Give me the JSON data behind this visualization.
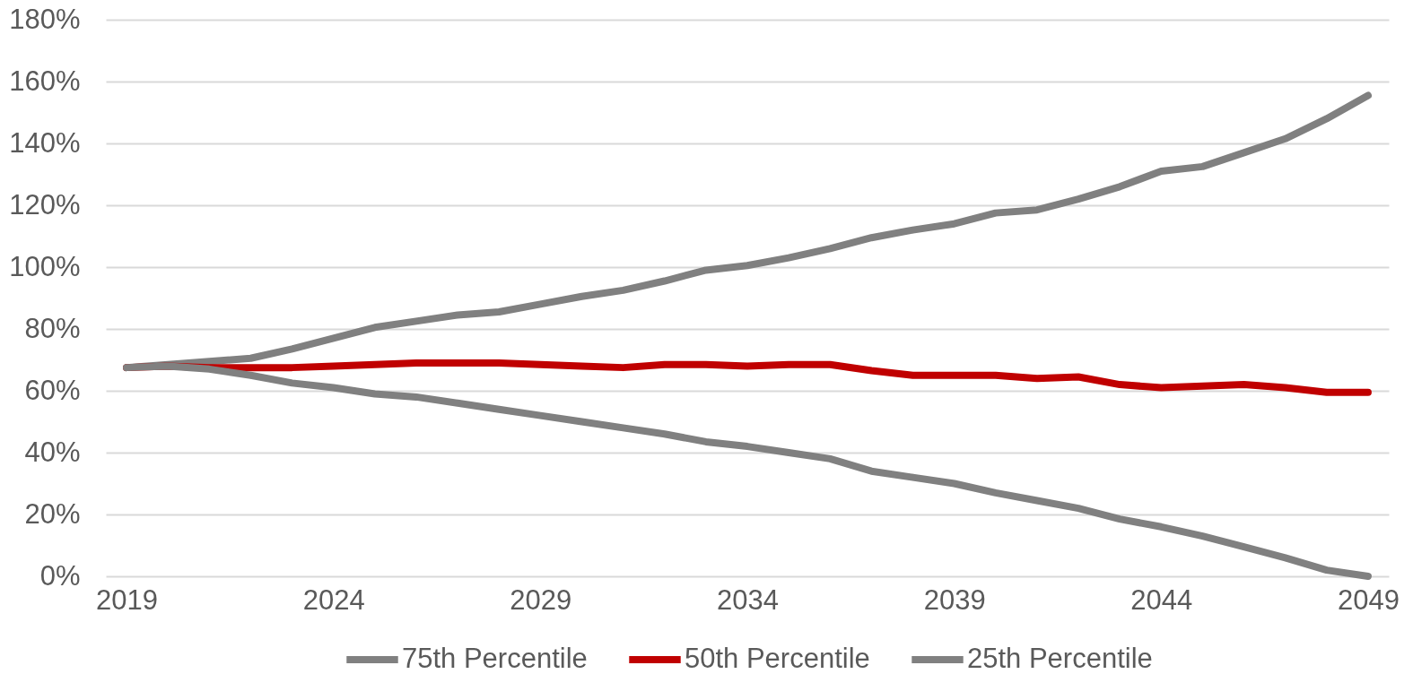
{
  "chart_data": {
    "type": "line",
    "x": [
      2019,
      2020,
      2021,
      2022,
      2023,
      2024,
      2025,
      2026,
      2027,
      2028,
      2029,
      2030,
      2031,
      2032,
      2033,
      2034,
      2035,
      2036,
      2037,
      2038,
      2039,
      2040,
      2041,
      2042,
      2043,
      2044,
      2045,
      2046,
      2047,
      2048,
      2049
    ],
    "series": [
      {
        "name": "75th Percentile",
        "color": "#808080",
        "values": [
          67.5,
          68.5,
          69.5,
          70.5,
          73.5,
          77,
          80.5,
          82.5,
          84.5,
          85.5,
          88,
          90.5,
          92.5,
          95.5,
          99,
          100.5,
          103,
          106,
          109.5,
          112,
          114,
          117.5,
          118.5,
          122,
          126,
          131,
          132.5,
          137,
          141.5,
          148,
          155.5
        ]
      },
      {
        "name": "50th Percentile",
        "color": "#c00000",
        "values": [
          67.5,
          68,
          67.5,
          67.5,
          67.5,
          68,
          68.5,
          69,
          69,
          69,
          68.5,
          68,
          67.5,
          68.5,
          68.5,
          68,
          68.5,
          68.5,
          66.5,
          65,
          65,
          65,
          64,
          64.5,
          62,
          61,
          61.5,
          62,
          61,
          59.5,
          59.5
        ]
      },
      {
        "name": "25th Percentile",
        "color": "#808080",
        "values": [
          67.5,
          68,
          67,
          65,
          62.5,
          61,
          59,
          58,
          56,
          54,
          52,
          50,
          48,
          46,
          43.5,
          42,
          40,
          38,
          34,
          32,
          30,
          27,
          24.5,
          22,
          18.5,
          16,
          13,
          9.5,
          6,
          2,
          0
        ]
      }
    ],
    "xlim": [
      2018.5,
      2049.5
    ],
    "xticks": [
      2019,
      2024,
      2029,
      2034,
      2039,
      2044,
      2049
    ],
    "ylim": [
      0,
      180
    ],
    "yticks": [
      {
        "value": 0,
        "label": "0%"
      },
      {
        "value": 20,
        "label": "20%"
      },
      {
        "value": 40,
        "label": "40%"
      },
      {
        "value": 60,
        "label": "60%"
      },
      {
        "value": 80,
        "label": "80%"
      },
      {
        "value": 100,
        "label": "100%"
      },
      {
        "value": 120,
        "label": "120%"
      },
      {
        "value": 140,
        "label": "140%"
      },
      {
        "value": 160,
        "label": "160%"
      },
      {
        "value": 180,
        "label": "180%"
      }
    ],
    "grid": "y",
    "legend": "bottom"
  }
}
